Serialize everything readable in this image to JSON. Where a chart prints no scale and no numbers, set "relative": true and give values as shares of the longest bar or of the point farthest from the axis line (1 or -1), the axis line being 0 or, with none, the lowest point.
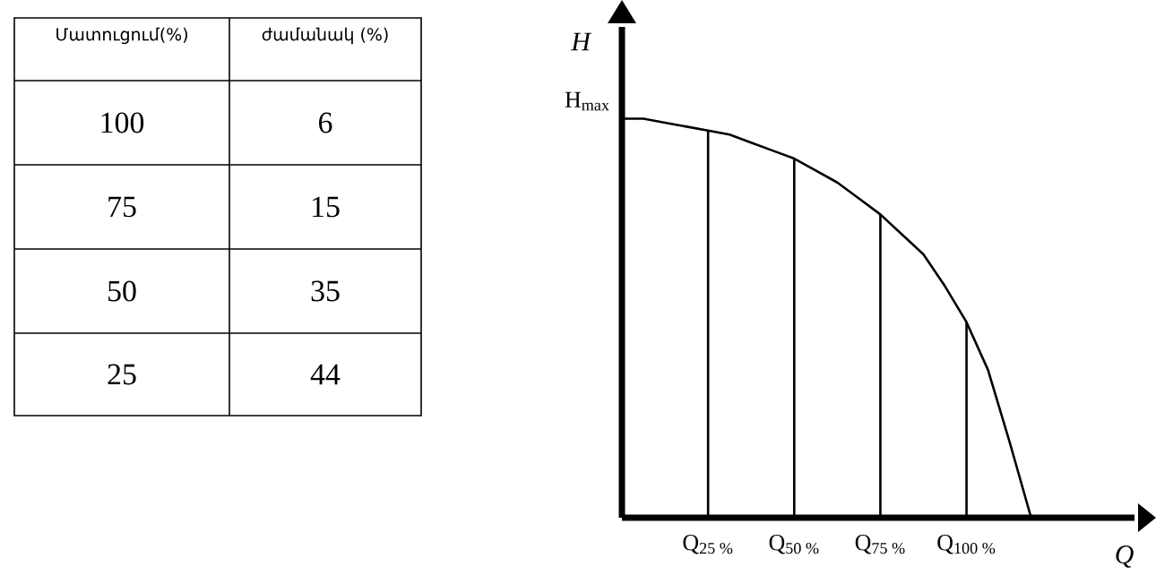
{
  "chart_data": [
    {
      "type": "heatmap",
      "ylabel": "Մատուցում(%)",
      "categories": [
        "ժամանակ (%)"
      ],
      "y_categories": [
        "100",
        "75",
        "50",
        "25"
      ],
      "cells": [
        [
          6
        ],
        [
          15
        ],
        [
          35
        ],
        [
          44
        ]
      ],
      "data_labels": true
    },
    {
      "type": "line",
      "relative": true,
      "xlabel": "Q",
      "ylabel": "H",
      "annotations": [
        "H$_{max}$"
      ],
      "categories": [
        null,
        null,
        null,
        null,
        "Q$_{25 %}$",
        null,
        null,
        null,
        "Q$_{50 %}$",
        null,
        null,
        null,
        "Q$_{75 %}$",
        null,
        null,
        null,
        "Q$_{100 %}$",
        null,
        null,
        null
      ],
      "series": [
        {
          "color": "#000000",
          "values": [
            1.0,
            1.0,
            0.99,
            0.98,
            0.97,
            0.96,
            0.94,
            0.92,
            0.9,
            0.87,
            0.84,
            0.8,
            0.76,
            0.71,
            0.66,
            0.58,
            0.49,
            0.37,
            0.19,
            0
          ]
        },
        {
          "type": "bar",
          "color": "#000000",
          "values": [
            null,
            null,
            null,
            null,
            0.97,
            null,
            null,
            null,
            0.9,
            null,
            null,
            null,
            0.76,
            null,
            null,
            null,
            0.49,
            null,
            null,
            null
          ]
        }
      ]
    }
  ]
}
